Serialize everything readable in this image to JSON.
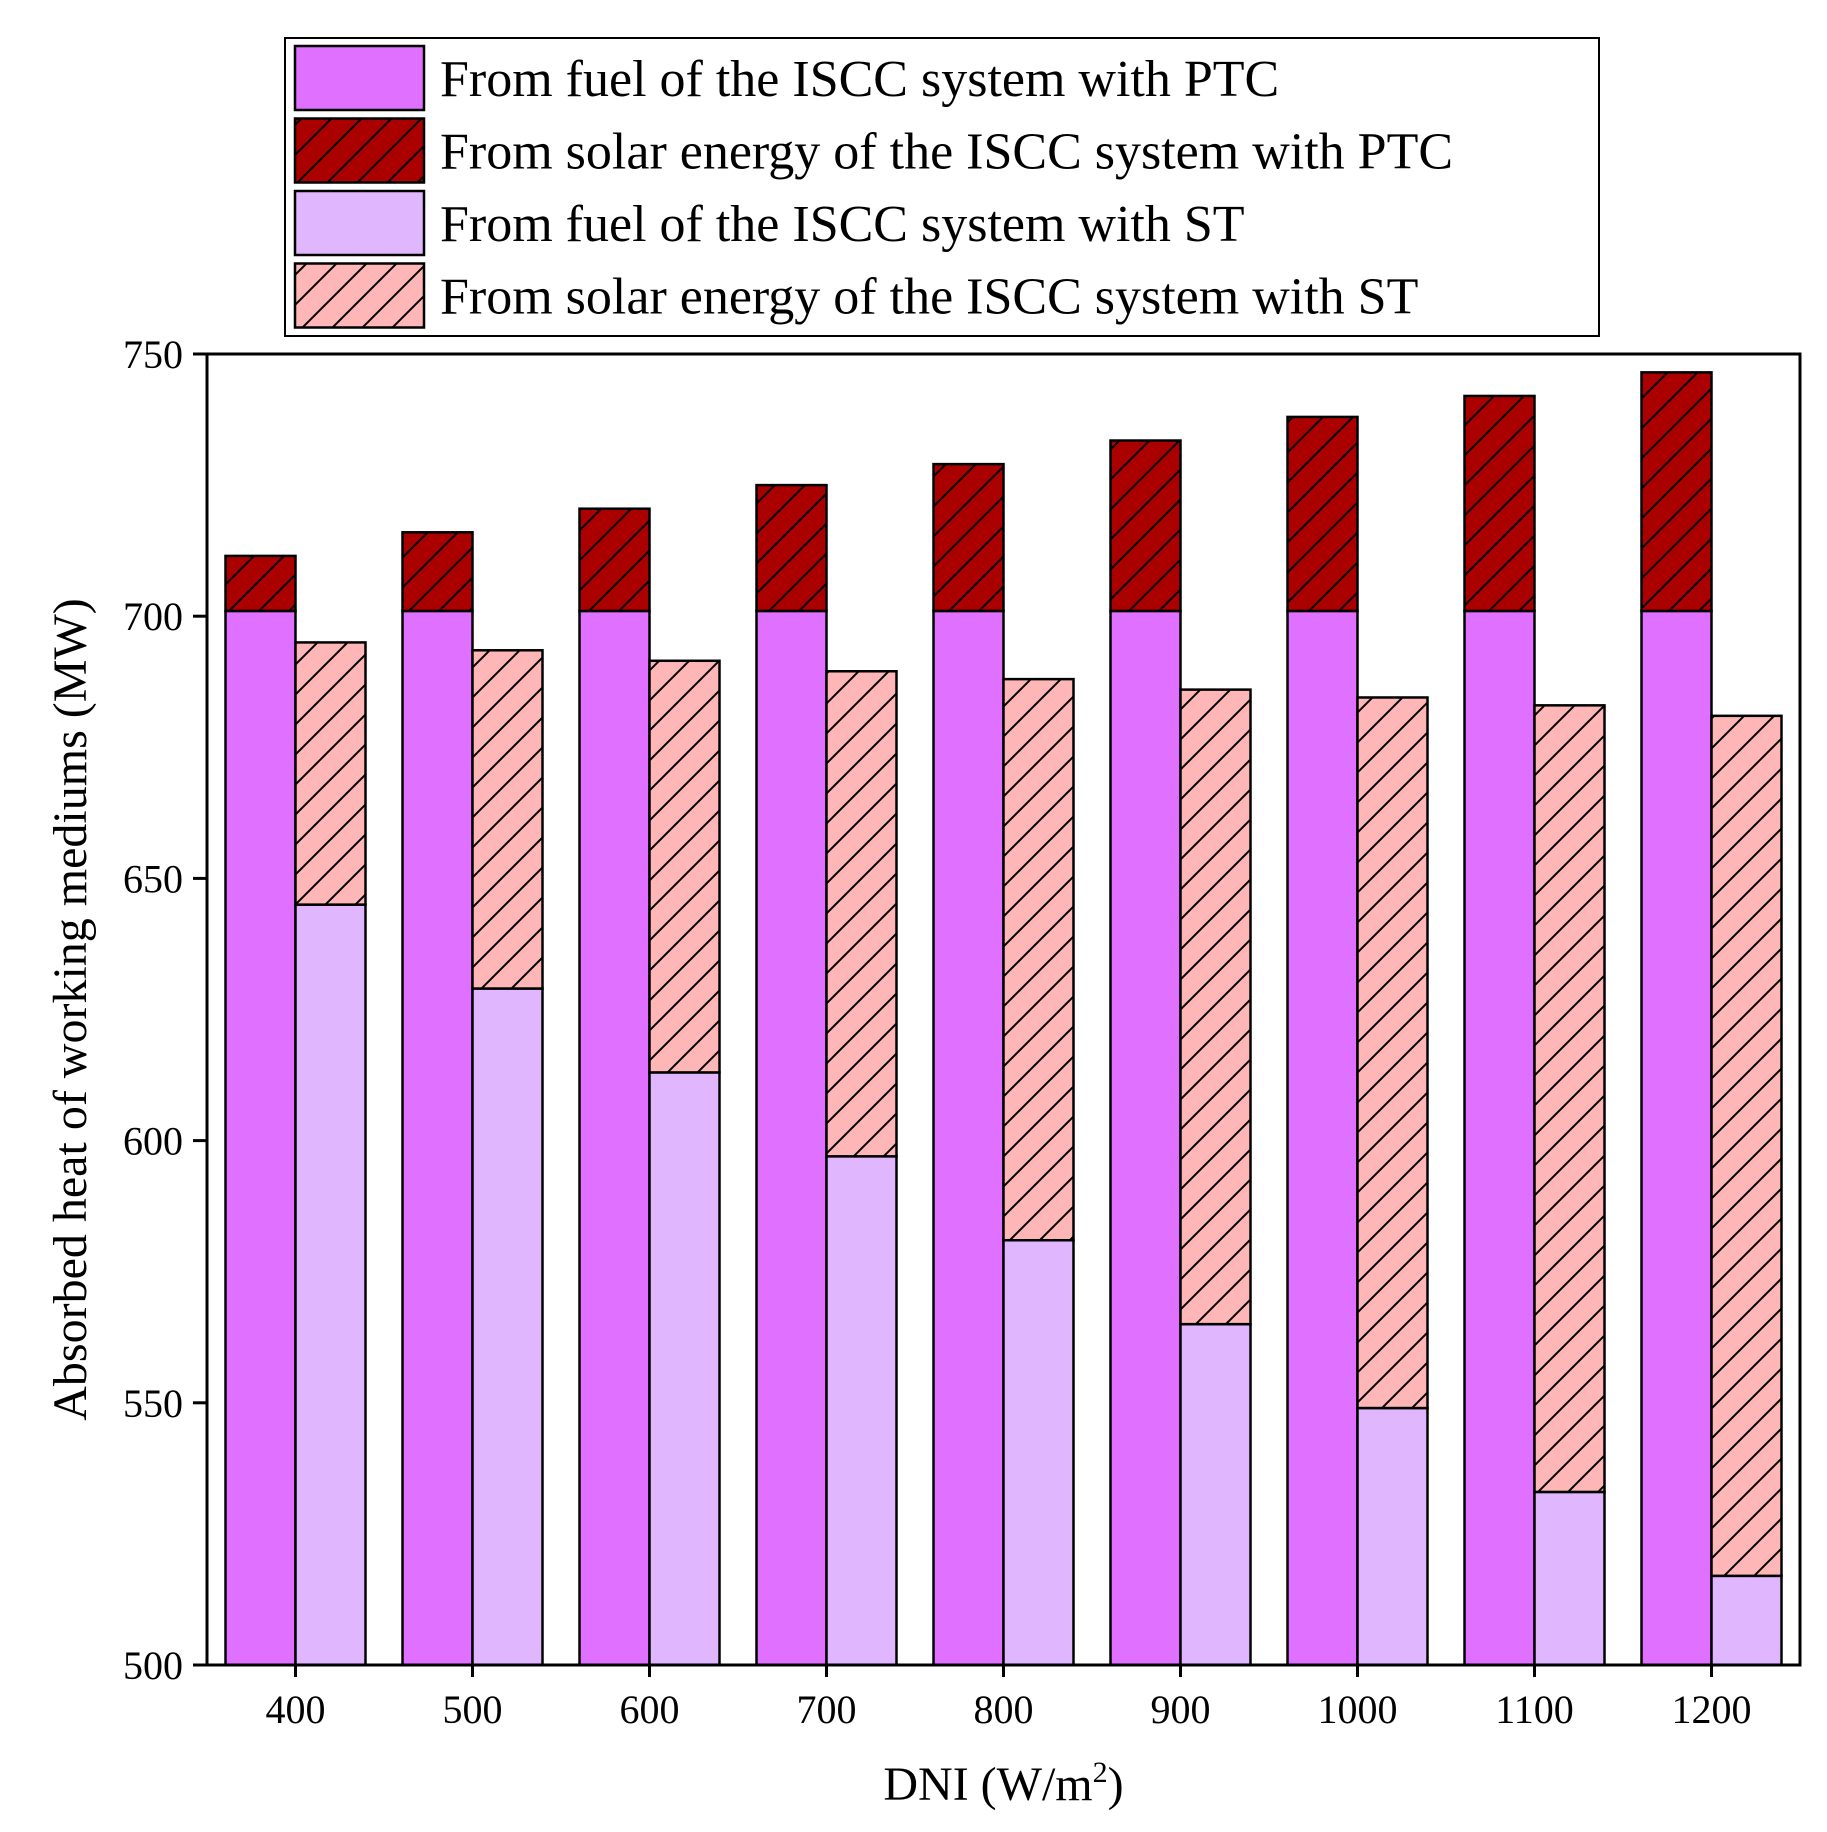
{
  "colors": {
    "ptc_fuel": "#e070ff",
    "ptc_solar": "#aa0000",
    "st_fuel": "#e0b6ff",
    "st_solar": "#ffb6b6",
    "hatch": "#000000"
  },
  "chart_data": {
    "type": "bar",
    "stacked": true,
    "title": "",
    "xlabel": "DNI (W/m",
    "xlabel_superscript": "2",
    "xlabel_suffix": ")",
    "ylabel": "Absorbed heat of working mediums (MW)",
    "ylim": [
      500,
      750
    ],
    "yticks": [
      "500",
      "550",
      "600",
      "650",
      "700",
      "750"
    ],
    "categories": [
      "400",
      "500",
      "600",
      "700",
      "800",
      "900",
      "1000",
      "1100",
      "1200"
    ],
    "legend_position": "top",
    "series": [
      {
        "name": "From fuel of the ISCC system with PTC",
        "group": "PTC",
        "pattern": "solid",
        "color_key": "ptc_fuel",
        "values": [
          701,
          701,
          701,
          701,
          701,
          701,
          701,
          701,
          701
        ]
      },
      {
        "name": "From solar energy of the ISCC system with PTC",
        "group": "PTC",
        "pattern": "hatched",
        "color_key": "ptc_solar",
        "values": [
          10.5,
          15,
          19.5,
          24,
          28,
          32.5,
          37,
          41,
          45.5
        ]
      },
      {
        "name": "From fuel of the ISCC system with ST",
        "group": "ST",
        "pattern": "solid",
        "color_key": "st_fuel",
        "values": [
          645,
          629,
          613,
          597,
          581,
          565,
          549,
          533,
          517
        ]
      },
      {
        "name": "From solar energy of the ISCC system with ST",
        "group": "ST",
        "pattern": "hatched",
        "color_key": "st_solar",
        "values": [
          50,
          64.5,
          78.5,
          92.5,
          107,
          121,
          135.5,
          150,
          164
        ]
      }
    ]
  }
}
